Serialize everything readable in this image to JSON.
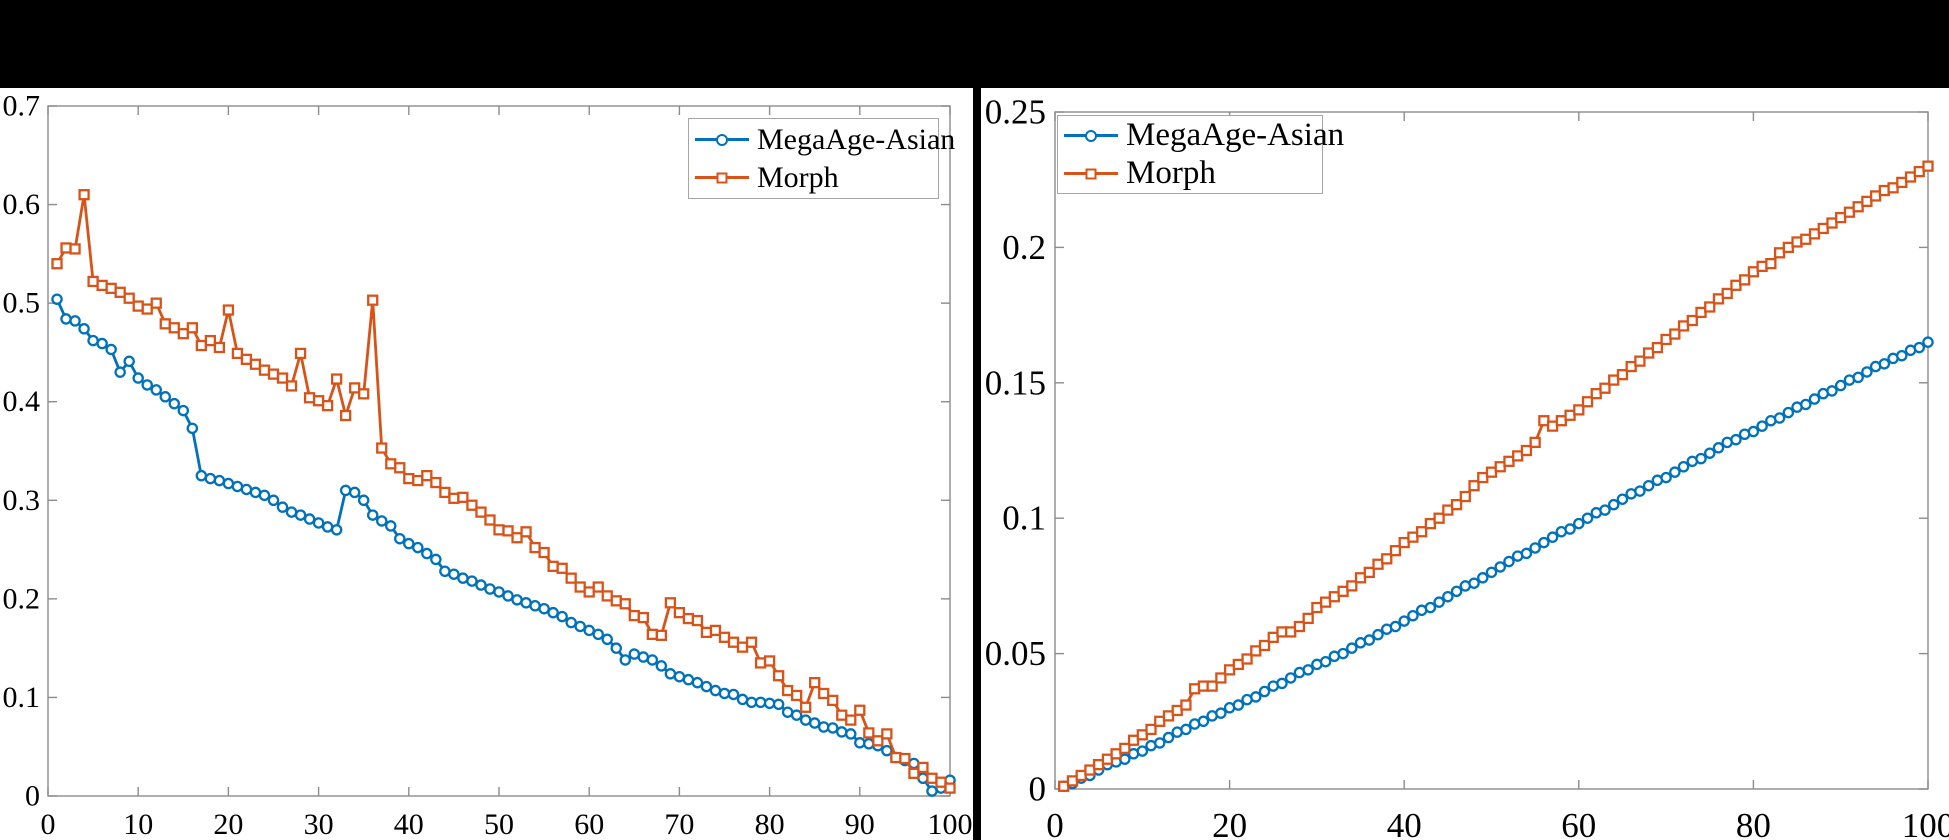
{
  "page": {
    "background": "#ffffff",
    "top_bar_color": "#000000",
    "divider_color": "#000000",
    "axis_color": "#8c8c8c",
    "text_color": "#000000"
  },
  "chart_data": [
    {
      "type": "line",
      "title": "",
      "xlabel": "",
      "ylabel": "",
      "xlim": [
        0,
        100
      ],
      "ylim": [
        0,
        0.7
      ],
      "grid": false,
      "legend_position": "top-right",
      "xticks": {
        "values": [
          0,
          10,
          20,
          30,
          40,
          50,
          60,
          70,
          80,
          90,
          100
        ],
        "labels": [
          "0",
          "10",
          "20",
          "30",
          "40",
          "50",
          "60",
          "70",
          "80",
          "90",
          "100"
        ]
      },
      "yticks": {
        "values": [
          0,
          0.1,
          0.2,
          0.3,
          0.4,
          0.5,
          0.6,
          0.7
        ],
        "labels": [
          "0",
          "0.1",
          "0.2",
          "0.3",
          "0.4",
          "0.5",
          "0.6",
          "0.7"
        ]
      },
      "x": {
        "from": 1,
        "to": 100,
        "step": 1
      },
      "series": [
        {
          "name": "MegaAge-Asian",
          "color": "#0072BD",
          "marker": "circle",
          "values": [
            0.504,
            0.484,
            0.482,
            0.474,
            0.462,
            0.459,
            0.453,
            0.43,
            0.441,
            0.424,
            0.417,
            0.412,
            0.405,
            0.398,
            0.391,
            0.373,
            0.325,
            0.322,
            0.32,
            0.317,
            0.314,
            0.311,
            0.308,
            0.305,
            0.3,
            0.293,
            0.288,
            0.285,
            0.281,
            0.277,
            0.273,
            0.27,
            0.31,
            0.308,
            0.3,
            0.285,
            0.279,
            0.274,
            0.261,
            0.256,
            0.252,
            0.246,
            0.24,
            0.228,
            0.225,
            0.221,
            0.218,
            0.214,
            0.21,
            0.207,
            0.203,
            0.199,
            0.196,
            0.193,
            0.19,
            0.186,
            0.182,
            0.176,
            0.172,
            0.168,
            0.164,
            0.159,
            0.15,
            0.138,
            0.144,
            0.141,
            0.138,
            0.132,
            0.124,
            0.121,
            0.118,
            0.115,
            0.111,
            0.107,
            0.104,
            0.103,
            0.098,
            0.095,
            0.095,
            0.094,
            0.093,
            0.085,
            0.082,
            0.077,
            0.074,
            0.07,
            0.069,
            0.065,
            0.063,
            0.054,
            0.053,
            0.051,
            0.046,
            0.039,
            0.036,
            0.033,
            0.018,
            0.005,
            0.008,
            0.016
          ]
        },
        {
          "name": "Morph",
          "color": "#D95319",
          "marker": "square",
          "values": [
            0.54,
            0.556,
            0.555,
            0.61,
            0.522,
            0.518,
            0.515,
            0.511,
            0.505,
            0.497,
            0.494,
            0.5,
            0.479,
            0.475,
            0.469,
            0.475,
            0.457,
            0.462,
            0.455,
            0.493,
            0.449,
            0.443,
            0.438,
            0.432,
            0.428,
            0.424,
            0.416,
            0.449,
            0.404,
            0.401,
            0.396,
            0.423,
            0.386,
            0.414,
            0.408,
            0.503,
            0.353,
            0.337,
            0.333,
            0.322,
            0.32,
            0.325,
            0.318,
            0.308,
            0.302,
            0.303,
            0.295,
            0.288,
            0.28,
            0.27,
            0.269,
            0.262,
            0.268,
            0.252,
            0.247,
            0.233,
            0.231,
            0.221,
            0.212,
            0.207,
            0.212,
            0.203,
            0.198,
            0.195,
            0.183,
            0.181,
            0.164,
            0.163,
            0.196,
            0.186,
            0.18,
            0.178,
            0.166,
            0.168,
            0.161,
            0.156,
            0.151,
            0.156,
            0.135,
            0.137,
            0.122,
            0.107,
            0.102,
            0.09,
            0.115,
            0.104,
            0.097,
            0.082,
            0.077,
            0.087,
            0.064,
            0.056,
            0.063,
            0.039,
            0.038,
            0.023,
            0.029,
            0.018,
            0.014,
            0.008
          ]
        }
      ]
    },
    {
      "type": "line",
      "title": "",
      "xlabel": "",
      "ylabel": "",
      "xlim": [
        0,
        100
      ],
      "ylim": [
        0,
        0.25
      ],
      "grid": false,
      "legend_position": "top-left",
      "xticks": {
        "values": [
          0,
          20,
          40,
          60,
          80,
          100
        ],
        "labels": [
          "0",
          "20",
          "40",
          "60",
          "80",
          "100"
        ]
      },
      "yticks": {
        "values": [
          0,
          0.05,
          0.1,
          0.15,
          0.2,
          0.25
        ],
        "labels": [
          "0",
          "0.05",
          "0.1",
          "0.15",
          "0.2",
          "0.25"
        ]
      },
      "x": {
        "from": 1,
        "to": 100,
        "step": 1
      },
      "series": [
        {
          "name": "MegaAge-Asian",
          "color": "#0072BD",
          "marker": "circle",
          "values": [
            0.001,
            0.002,
            0.004,
            0.005,
            0.007,
            0.009,
            0.01,
            0.011,
            0.013,
            0.014,
            0.016,
            0.017,
            0.019,
            0.021,
            0.022,
            0.024,
            0.025,
            0.027,
            0.028,
            0.03,
            0.031,
            0.033,
            0.034,
            0.036,
            0.038,
            0.039,
            0.041,
            0.043,
            0.044,
            0.046,
            0.047,
            0.049,
            0.05,
            0.052,
            0.054,
            0.055,
            0.057,
            0.059,
            0.06,
            0.062,
            0.064,
            0.066,
            0.067,
            0.069,
            0.071,
            0.073,
            0.075,
            0.076,
            0.078,
            0.08,
            0.082,
            0.084,
            0.086,
            0.087,
            0.089,
            0.091,
            0.093,
            0.095,
            0.096,
            0.098,
            0.1,
            0.102,
            0.103,
            0.105,
            0.107,
            0.109,
            0.11,
            0.112,
            0.114,
            0.115,
            0.117,
            0.119,
            0.121,
            0.122,
            0.124,
            0.126,
            0.128,
            0.129,
            0.131,
            0.132,
            0.134,
            0.136,
            0.137,
            0.139,
            0.141,
            0.142,
            0.144,
            0.146,
            0.147,
            0.149,
            0.151,
            0.152,
            0.154,
            0.156,
            0.157,
            0.159,
            0.16,
            0.162,
            0.163,
            0.165
          ]
        },
        {
          "name": "Morph",
          "color": "#D95319",
          "marker": "square",
          "values": [
            0.001,
            0.003,
            0.005,
            0.007,
            0.009,
            0.011,
            0.013,
            0.015,
            0.018,
            0.02,
            0.022,
            0.025,
            0.027,
            0.029,
            0.031,
            0.037,
            0.038,
            0.038,
            0.041,
            0.044,
            0.046,
            0.048,
            0.051,
            0.053,
            0.056,
            0.058,
            0.058,
            0.06,
            0.063,
            0.067,
            0.069,
            0.071,
            0.073,
            0.075,
            0.078,
            0.08,
            0.083,
            0.085,
            0.088,
            0.091,
            0.093,
            0.095,
            0.098,
            0.1,
            0.103,
            0.105,
            0.108,
            0.112,
            0.115,
            0.117,
            0.119,
            0.121,
            0.123,
            0.125,
            0.128,
            0.136,
            0.134,
            0.136,
            0.138,
            0.14,
            0.143,
            0.146,
            0.148,
            0.151,
            0.153,
            0.156,
            0.158,
            0.161,
            0.163,
            0.166,
            0.168,
            0.171,
            0.173,
            0.176,
            0.178,
            0.181,
            0.183,
            0.186,
            0.188,
            0.191,
            0.193,
            0.194,
            0.198,
            0.2,
            0.202,
            0.203,
            0.205,
            0.207,
            0.209,
            0.211,
            0.213,
            0.215,
            0.217,
            0.219,
            0.221,
            0.222,
            0.224,
            0.226,
            0.228,
            0.23
          ]
        }
      ]
    }
  ]
}
